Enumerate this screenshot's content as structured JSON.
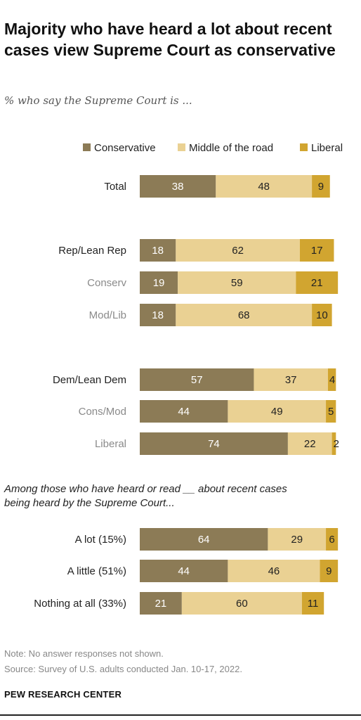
{
  "title": "Majority who have heard a lot about recent cases view Supreme Court as conservative",
  "subtitle": "% who say the Supreme Court is ...",
  "group_note": "Among those who have heard or read __ about recent cases being heard by the Supreme Court...",
  "notes": {
    "note": "Note: No answer responses not shown.",
    "source": "Source: Survey of U.S. adults conducted Jan. 10-17, 2022."
  },
  "brand": "PEW RESEARCH CENTER",
  "colors": {
    "conservative": "#8c7b56",
    "middle": "#ead193",
    "liberal": "#d1a530",
    "label_primary": "#222222",
    "label_secondary": "#8a8a8a"
  },
  "chart_data": {
    "type": "bar",
    "orientation": "horizontal",
    "stacked": true,
    "xlim": [
      0,
      100
    ],
    "legend": [
      "Conservative",
      "Middle of the road",
      "Liberal"
    ],
    "legend_position": "top-right",
    "categories": [
      "Total",
      "Rep/Lean Rep",
      "Conserv",
      "Mod/Lib",
      "Dem/Lean Dem",
      "Cons/Mod",
      "Liberal",
      "A lot (15%)",
      "A little (51%)",
      "Nothing at all (33%)"
    ],
    "category_style": [
      "primary",
      "primary",
      "secondary",
      "secondary",
      "primary",
      "secondary",
      "secondary",
      "primary",
      "primary",
      "primary"
    ],
    "series": [
      {
        "name": "Conservative",
        "values": [
          38,
          18,
          19,
          18,
          57,
          44,
          74,
          64,
          44,
          21
        ]
      },
      {
        "name": "Middle of the road",
        "values": [
          48,
          62,
          59,
          68,
          37,
          49,
          22,
          29,
          46,
          60
        ]
      },
      {
        "name": "Liberal",
        "values": [
          9,
          17,
          21,
          10,
          4,
          5,
          2,
          6,
          9,
          11
        ]
      }
    ]
  }
}
